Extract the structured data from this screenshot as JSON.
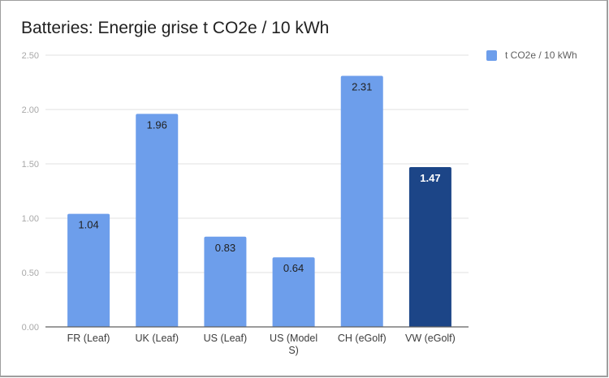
{
  "chart_data": {
    "type": "bar",
    "title": "Batteries: Energie grise t CO2e / 10 kWh",
    "xlabel": "",
    "ylabel": "",
    "ylim": [
      0,
      2.5
    ],
    "yticks": [
      "0.00",
      "0.50",
      "1.00",
      "1.50",
      "2.00",
      "2.50"
    ],
    "ytick_values": [
      0,
      0.5,
      1.0,
      1.5,
      2.0,
      2.5
    ],
    "grid": true,
    "legend_position": "top-right",
    "categories": [
      [
        "FR (Leaf)"
      ],
      [
        "UK (Leaf)"
      ],
      [
        "US (Leaf)"
      ],
      [
        "US (Model",
        "S)"
      ],
      [
        "CH (eGolf)"
      ],
      [
        "VW (eGolf)"
      ]
    ],
    "series": [
      {
        "name": "t CO2e / 10 kWh",
        "color": "#6d9eeb",
        "values": [
          1.04,
          1.96,
          0.83,
          0.64,
          2.31,
          1.47
        ],
        "labels": [
          "1.04",
          "1.96",
          "0.83",
          "0.64",
          "2.31",
          "1.47"
        ],
        "highlight_index": 5,
        "highlight_color": "#1c4587"
      }
    ]
  }
}
